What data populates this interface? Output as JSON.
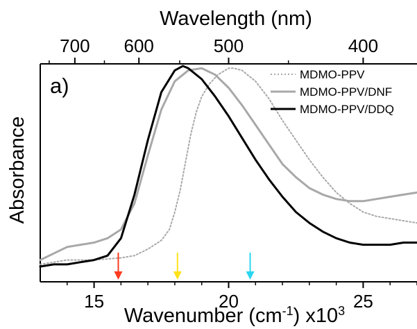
{
  "chart_data": {
    "type": "line",
    "panel_label": "a)",
    "xlabel_bottom": "Wavenumber (cm",
    "xlabel_bottom_sup": "-1",
    "xlabel_bottom_suffix": ") x10",
    "xlabel_bottom_power": "3",
    "xlabel_top": "Wavelength (nm)",
    "ylabel": "Absorbance",
    "xlim": [
      13,
      27
    ],
    "ylim": [
      0,
      1
    ],
    "x_ticks": [
      15,
      20,
      25
    ],
    "x_tick_labels": [
      "15",
      "20",
      "25"
    ],
    "top_ticks_nm": [
      700,
      600,
      500,
      400
    ],
    "top_tick_labels": [
      "700",
      "600",
      "500",
      "400"
    ],
    "legend_position": "top-right",
    "series": [
      {
        "name": "MDMO-PPV",
        "color": "#a8a8a8",
        "style": "dotted",
        "x": [
          13.0,
          14.0,
          15.0,
          16.0,
          16.5,
          17.0,
          17.5,
          17.8,
          18.0,
          18.2,
          18.4,
          18.6,
          18.8,
          19.0,
          19.3,
          19.6,
          20.0,
          20.2,
          20.5,
          21.0,
          21.5,
          22.0,
          22.5,
          23.0,
          23.5,
          24.0,
          24.5,
          25.0,
          25.5,
          26.0,
          26.5,
          27.0
        ],
        "y": [
          0.08,
          0.1,
          0.1,
          0.11,
          0.12,
          0.15,
          0.19,
          0.24,
          0.32,
          0.42,
          0.55,
          0.68,
          0.78,
          0.85,
          0.91,
          0.95,
          0.98,
          0.98,
          0.97,
          0.92,
          0.84,
          0.74,
          0.65,
          0.56,
          0.48,
          0.41,
          0.36,
          0.32,
          0.3,
          0.29,
          0.28,
          0.27
        ]
      },
      {
        "name": "MDMO-PPV/DNF",
        "color": "#a8a8a8",
        "style": "solid",
        "x": [
          13.0,
          13.5,
          14.0,
          14.5,
          15.0,
          15.5,
          16.0,
          16.5,
          17.0,
          17.5,
          18.0,
          18.5,
          19.0,
          19.5,
          20.0,
          20.5,
          21.0,
          21.5,
          22.0,
          22.5,
          23.0,
          23.5,
          24.0,
          24.5,
          25.0,
          25.5,
          26.0,
          26.5,
          27.0
        ],
        "y": [
          0.1,
          0.13,
          0.16,
          0.17,
          0.18,
          0.2,
          0.24,
          0.36,
          0.58,
          0.79,
          0.92,
          0.97,
          0.98,
          0.95,
          0.89,
          0.81,
          0.72,
          0.63,
          0.54,
          0.48,
          0.43,
          0.4,
          0.38,
          0.37,
          0.37,
          0.38,
          0.39,
          0.4,
          0.41
        ]
      },
      {
        "name": "MDMO-PPV/DDQ",
        "color": "#000000",
        "style": "solid",
        "x": [
          13.0,
          13.5,
          14.0,
          14.5,
          15.0,
          15.5,
          16.0,
          16.5,
          17.0,
          17.5,
          18.0,
          18.3,
          18.5,
          19.0,
          19.5,
          20.0,
          20.5,
          21.0,
          21.5,
          22.0,
          22.5,
          23.0,
          23.5,
          24.0,
          24.5,
          25.0,
          25.5,
          26.0,
          26.5,
          27.0
        ],
        "y": [
          0.07,
          0.08,
          0.08,
          0.09,
          0.1,
          0.12,
          0.2,
          0.4,
          0.65,
          0.87,
          0.97,
          0.99,
          0.98,
          0.93,
          0.85,
          0.76,
          0.66,
          0.56,
          0.47,
          0.39,
          0.32,
          0.27,
          0.23,
          0.2,
          0.18,
          0.17,
          0.17,
          0.17,
          0.18,
          0.18
        ]
      }
    ],
    "arrows": [
      {
        "x": 15.9,
        "color": "#ff3b1f"
      },
      {
        "x": 18.1,
        "color": "#ffe21a"
      },
      {
        "x": 20.8,
        "color": "#2bd6f0"
      }
    ]
  }
}
